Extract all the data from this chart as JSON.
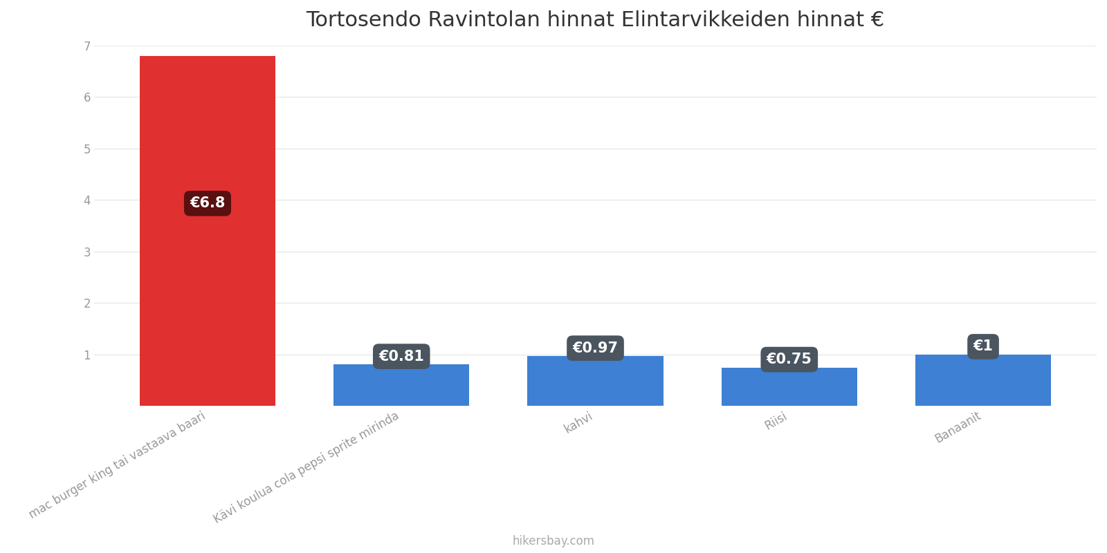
{
  "title": "Tortosendo Ravintolan hinnat Elintarvikkeiden hinnat €",
  "categories": [
    "mac burger king tai vastaava baari",
    "Kävi koulua cola pepsi sprite mirinda",
    "kahvi",
    "Riisi",
    "Banaanit"
  ],
  "values": [
    6.8,
    0.81,
    0.97,
    0.75,
    1.0
  ],
  "bar_colors": [
    "#e03030",
    "#3d80d4",
    "#3d80d4",
    "#3d80d4",
    "#3d80d4"
  ],
  "label_bg_colors": [
    "#5a1010",
    "#4a5560",
    "#4a5560",
    "#4a5560",
    "#4a5560"
  ],
  "labels": [
    "€6.8",
    "€0.81",
    "€0.97",
    "€0.75",
    "€1"
  ],
  "ylim": [
    0,
    7
  ],
  "yticks": [
    0,
    1,
    2,
    3,
    4,
    5,
    6,
    7
  ],
  "background_color": "#ffffff",
  "grid_color": "#e8e8e8",
  "title_fontsize": 22,
  "label_fontsize": 15,
  "tick_fontsize": 12,
  "watermark": "hikersbay.com",
  "watermark_color": "#aaaaaa",
  "bar_width": 0.7
}
